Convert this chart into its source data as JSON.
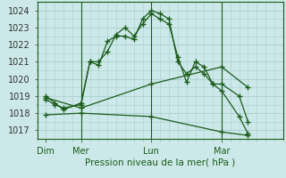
{
  "title": "Pression niveau de la mer( hPa )",
  "bg_color": "#cce8e8",
  "grid_color": "#aad0d0",
  "line_color": "#1a5c1a",
  "ylim": [
    1016.5,
    1024.5
  ],
  "yticks": [
    1017,
    1018,
    1019,
    1020,
    1021,
    1022,
    1023,
    1024
  ],
  "xlim": [
    0,
    28
  ],
  "day_labels": [
    "Dim",
    "Mer",
    "Lun",
    "Mar"
  ],
  "day_positions": [
    1,
    5,
    13,
    21
  ],
  "vline_positions": [
    5,
    13,
    21
  ],
  "series1_x": [
    1,
    2,
    3,
    5,
    6,
    7,
    8,
    9,
    10,
    11,
    12,
    13,
    14,
    15,
    16,
    17,
    18,
    19,
    20,
    21,
    23,
    24
  ],
  "series1_y": [
    1019.0,
    1018.6,
    1018.2,
    1018.6,
    1021.0,
    1021.0,
    1021.6,
    1022.6,
    1023.0,
    1022.5,
    1023.2,
    1023.8,
    1023.5,
    1023.2,
    1021.3,
    1019.8,
    1021.0,
    1020.7,
    1019.7,
    1019.7,
    1019.0,
    1017.5
  ],
  "series2_x": [
    1,
    2,
    3,
    5,
    6,
    7,
    8,
    9,
    10,
    11,
    12,
    13,
    14,
    15,
    16,
    17,
    18,
    19,
    20,
    21,
    23,
    24
  ],
  "series2_y": [
    1018.8,
    1018.5,
    1018.3,
    1018.5,
    1021.0,
    1020.8,
    1022.2,
    1022.5,
    1022.5,
    1022.3,
    1023.5,
    1024.0,
    1023.8,
    1023.5,
    1021.0,
    1020.3,
    1020.7,
    1020.3,
    1019.7,
    1019.3,
    1017.8,
    1016.8
  ],
  "series3_x": [
    1,
    5,
    13,
    21,
    24
  ],
  "series3_y": [
    1018.9,
    1018.3,
    1019.7,
    1020.7,
    1019.5
  ],
  "series4_x": [
    1,
    5,
    13,
    21,
    24
  ],
  "series4_y": [
    1017.9,
    1018.0,
    1017.8,
    1016.9,
    1016.7
  ]
}
